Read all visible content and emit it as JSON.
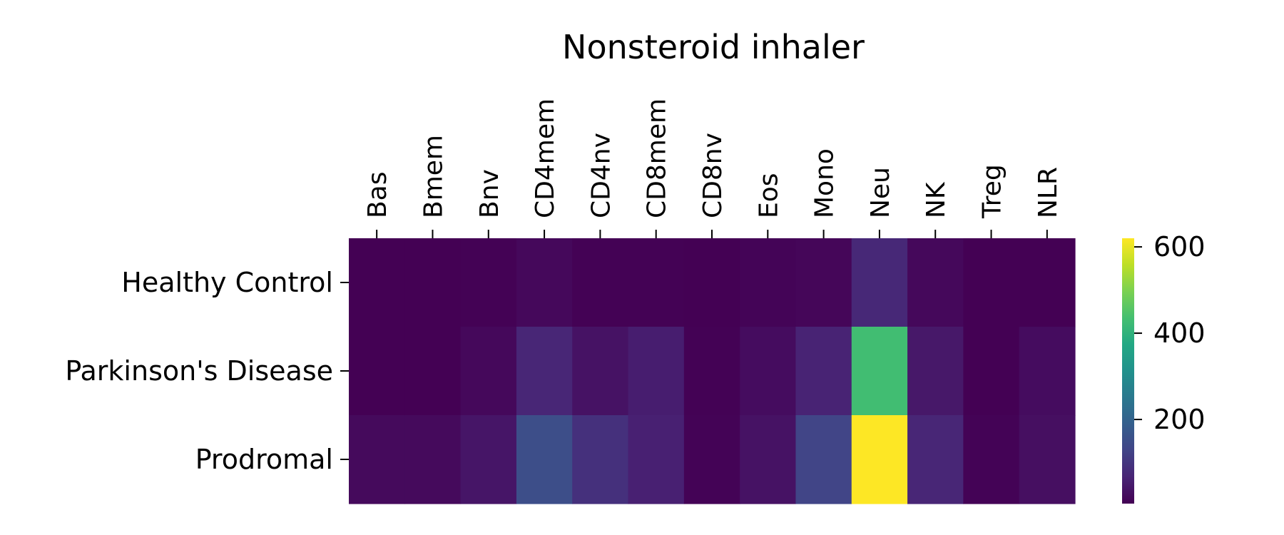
{
  "chart_data": {
    "type": "heatmap",
    "title": "Nonsteroid inhaler",
    "xlabel": "",
    "ylabel": "",
    "columns": [
      "Bas",
      "Bmem",
      "Bnv",
      "CD4mem",
      "CD4nv",
      "CD8mem",
      "CD8nv",
      "Eos",
      "Mono",
      "Neu",
      "NK",
      "Treg",
      "NLR"
    ],
    "rows": [
      "Healthy Control",
      "Parkinson's Disease",
      "Prodromal"
    ],
    "values": [
      [
        5,
        5,
        6,
        18,
        6,
        6,
        5,
        10,
        14,
        75,
        18,
        5,
        4
      ],
      [
        5,
        5,
        18,
        70,
        35,
        55,
        7,
        25,
        65,
        430,
        45,
        5,
        25
      ],
      [
        20,
        20,
        40,
        150,
        90,
        60,
        8,
        35,
        130,
        620,
        70,
        8,
        30
      ]
    ],
    "colorbar": {
      "colormap": "viridis",
      "range": [
        5,
        620
      ],
      "ticks": [
        200,
        400,
        600
      ],
      "tick_labels": [
        "200",
        "400",
        "600"
      ]
    },
    "grid": false,
    "legend": "colorbar-right"
  }
}
